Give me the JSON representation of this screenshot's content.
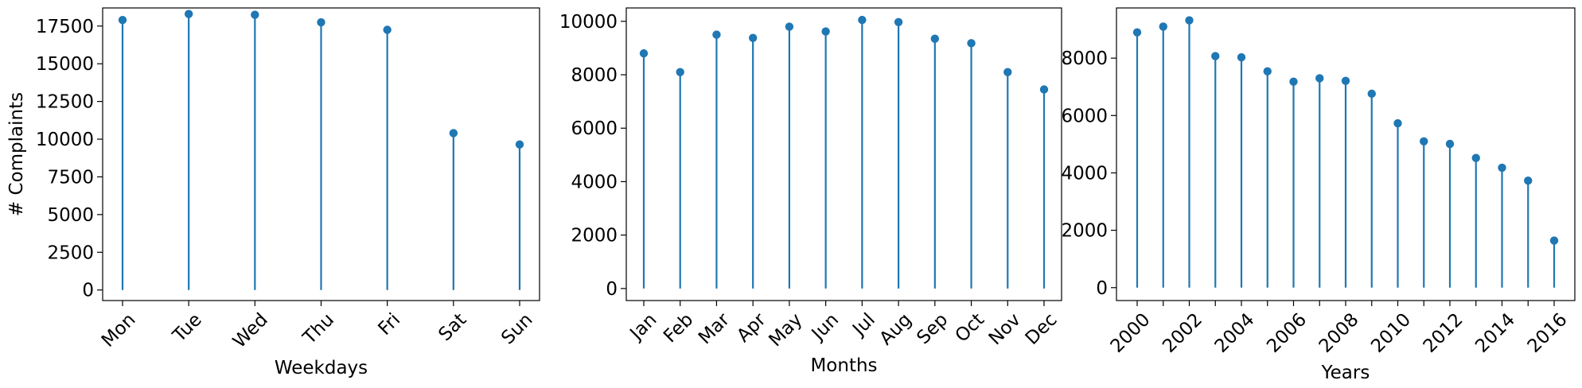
{
  "chart_data": [
    {
      "type": "stem",
      "categories": [
        "Mon",
        "Tue",
        "Wed",
        "Thu",
        "Fri",
        "Sat",
        "Sun"
      ],
      "values": [
        17900,
        18300,
        18250,
        17750,
        17250,
        10400,
        9650
      ],
      "ylim": [
        -700,
        18700
      ],
      "yticks": [
        0,
        2500,
        5000,
        7500,
        10000,
        12500,
        15000,
        17500
      ],
      "xlabel": "Weekdays",
      "ylabel": "# Complaints",
      "color": "#1f77b4",
      "grid": false
    },
    {
      "type": "stem",
      "categories": [
        "Jan",
        "Feb",
        "Mar",
        "Apr",
        "May",
        "Jun",
        "Jul",
        "Aug",
        "Sep",
        "Oct",
        "Nov",
        "Dec"
      ],
      "values": [
        8800,
        8100,
        9500,
        9380,
        9800,
        9620,
        10050,
        9970,
        9350,
        9180,
        8100,
        7450
      ],
      "ylim": [
        -450,
        10500
      ],
      "yticks": [
        0,
        2000,
        4000,
        6000,
        8000,
        10000
      ],
      "xlabel": "Months",
      "ylabel": "",
      "color": "#1f77b4",
      "grid": false
    },
    {
      "type": "stem",
      "categories": [
        "2000",
        "2001",
        "2002",
        "2003",
        "2004",
        "2005",
        "2006",
        "2007",
        "2008",
        "2009",
        "2010",
        "2011",
        "2012",
        "2013",
        "2014",
        "2015",
        "2016"
      ],
      "tick_labels": [
        "2000",
        "",
        "2002",
        "",
        "2004",
        "",
        "2006",
        "",
        "2008",
        "",
        "2010",
        "",
        "2012",
        "",
        "2014",
        "",
        "2016"
      ],
      "values": [
        8900,
        9100,
        9320,
        8070,
        8030,
        7540,
        7180,
        7300,
        7210,
        6760,
        5730,
        5100,
        5010,
        4520,
        4180,
        3730,
        1640
      ],
      "ylim": [
        -450,
        9750
      ],
      "yticks": [
        0,
        2000,
        4000,
        6000,
        8000
      ],
      "xlabel": "Years",
      "ylabel": "",
      "color": "#1f77b4",
      "grid": false
    }
  ]
}
